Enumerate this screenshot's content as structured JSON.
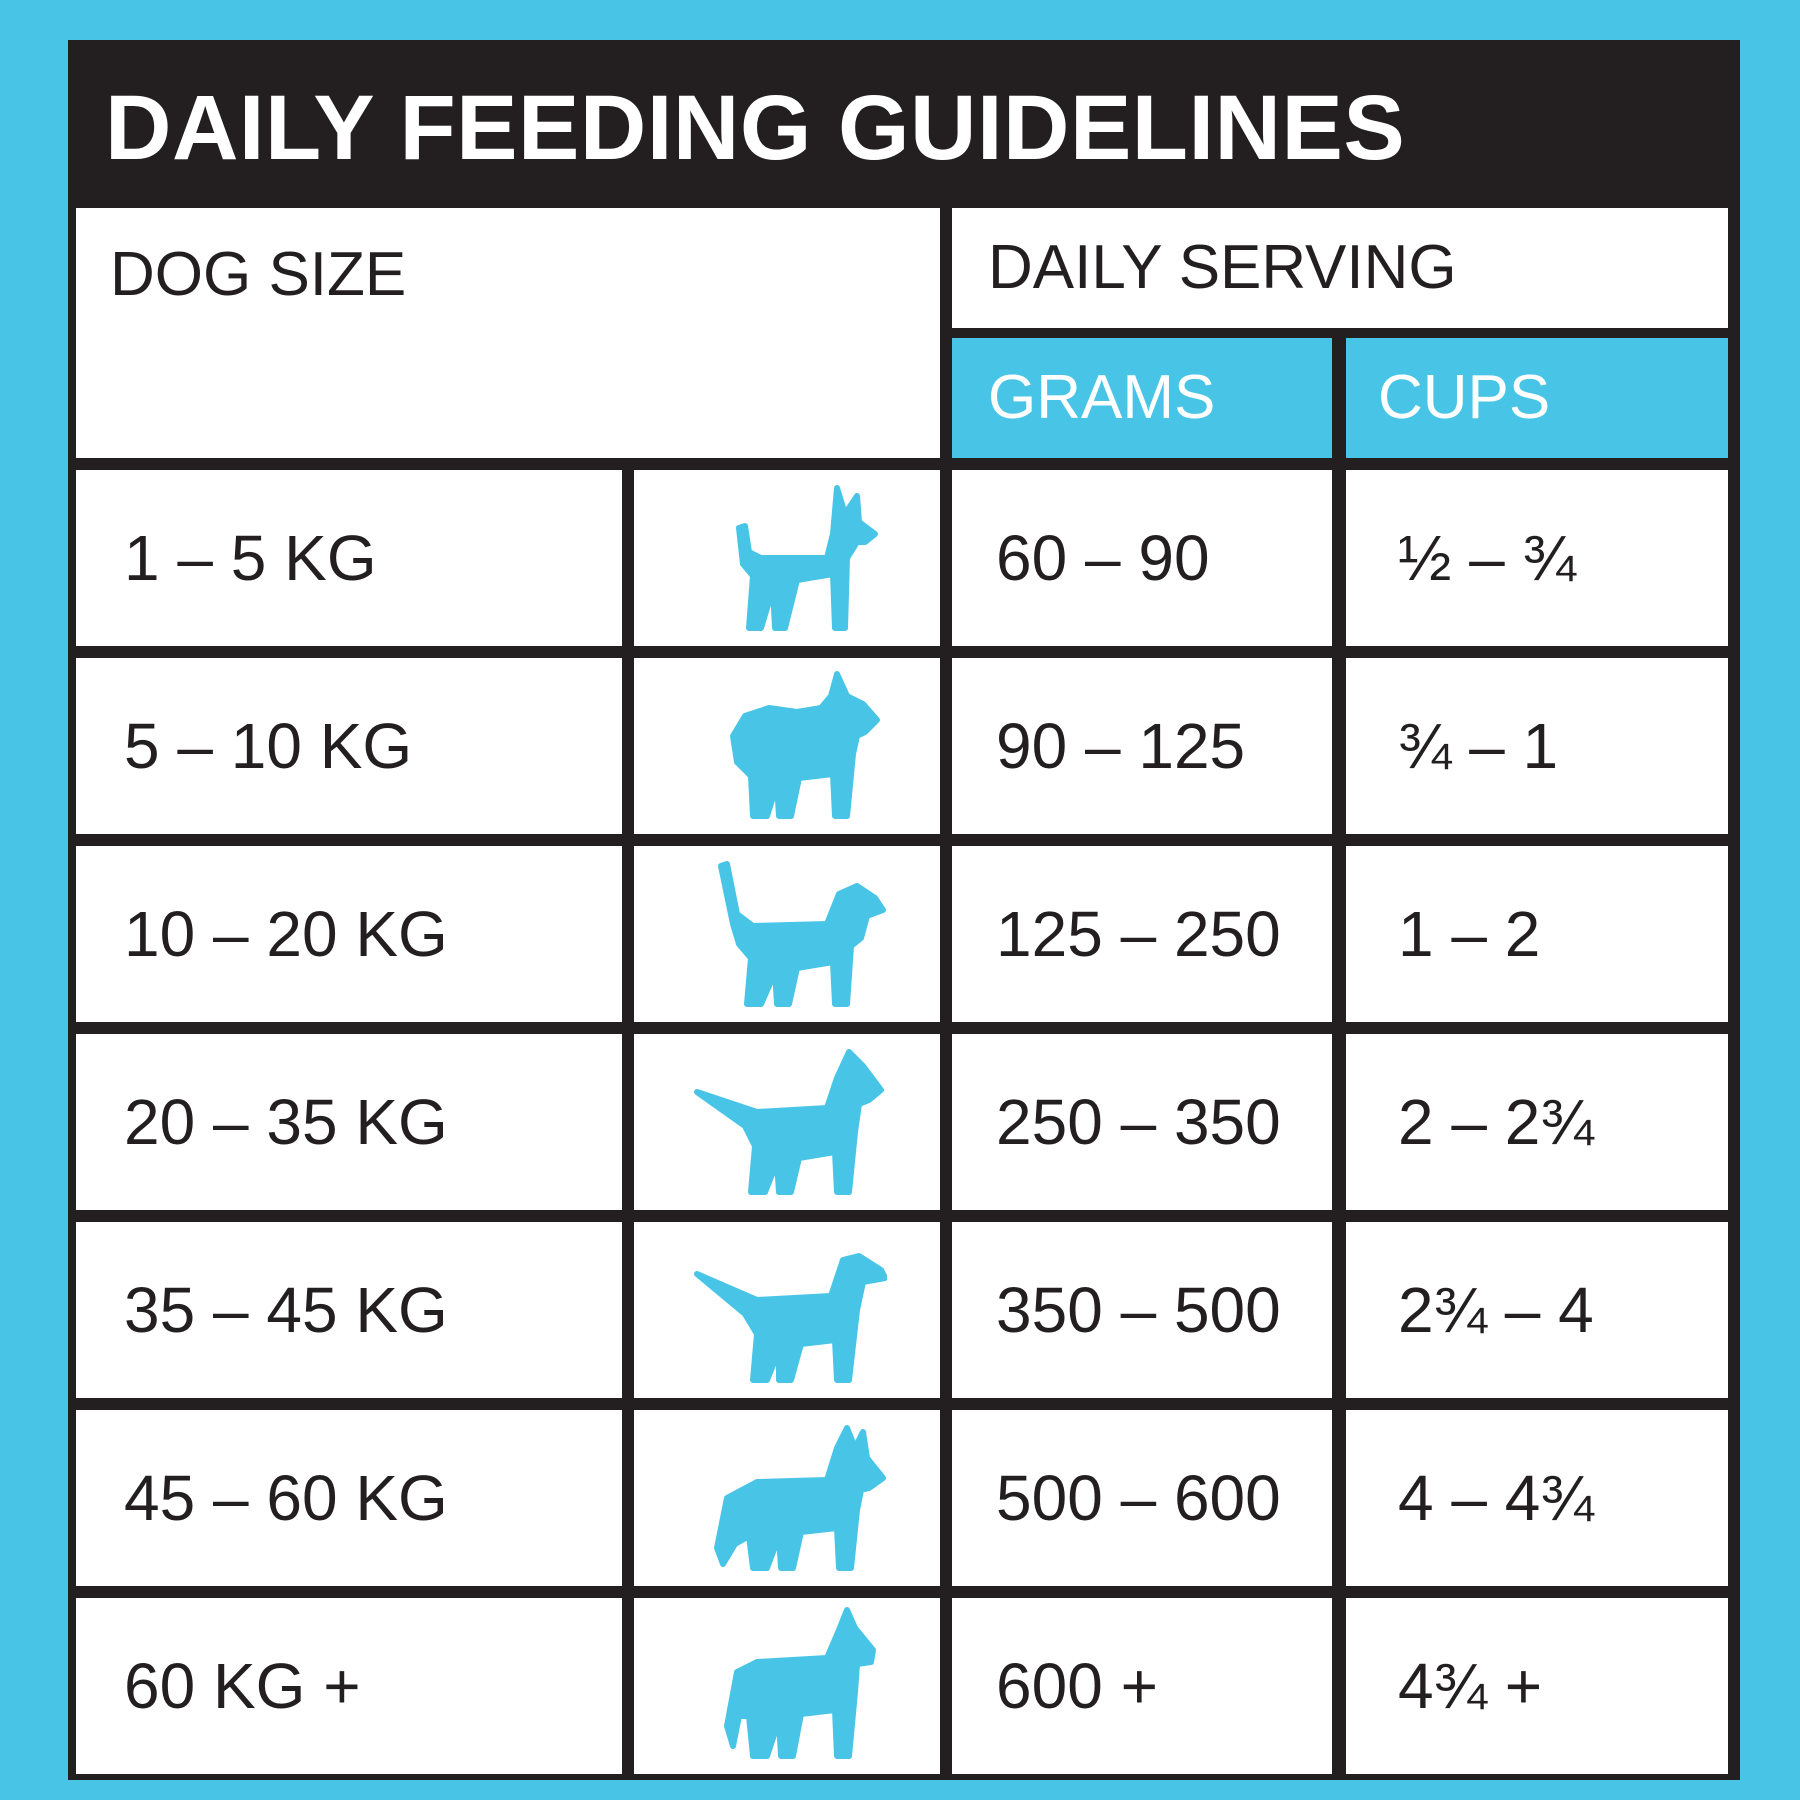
{
  "title": "DAILY FEEDING GUIDELINES",
  "headers": {
    "dog_size": "DOG SIZE",
    "daily_serving": "DAILY SERVING",
    "grams": "GRAMS",
    "cups": "CUPS"
  },
  "colors": {
    "accent": "#48c5e6",
    "dark": "#231f20",
    "cell": "#ffffff"
  },
  "rows": [
    {
      "size": "1 – 5 KG",
      "icon": "chihuahua-silhouette-icon",
      "grams": "60 – 90",
      "cups": "½ – ¾"
    },
    {
      "size": "5 – 10 KG",
      "icon": "pomeranian-silhouette-icon",
      "grams": "90 – 125",
      "cups": "¾ – 1"
    },
    {
      "size": "10 – 20 KG",
      "icon": "beagle-silhouette-icon",
      "grams": "125 – 250",
      "cups": "1 – 2"
    },
    {
      "size": "20 – 35 KG",
      "icon": "bull-terrier-silhouette-icon",
      "grams": "250 – 350",
      "cups": "2 – 2¾"
    },
    {
      "size": "35 – 45 KG",
      "icon": "pointer-silhouette-icon",
      "grams": "350 – 500",
      "cups": "2¾ – 4"
    },
    {
      "size": "45 – 60 KG",
      "icon": "husky-silhouette-icon",
      "grams": "500 – 600",
      "cups": "4 – 4¾"
    },
    {
      "size": "60 KG +",
      "icon": "great-dane-silhouette-icon",
      "grams": "600 +",
      "cups": "4¾ +"
    }
  ]
}
